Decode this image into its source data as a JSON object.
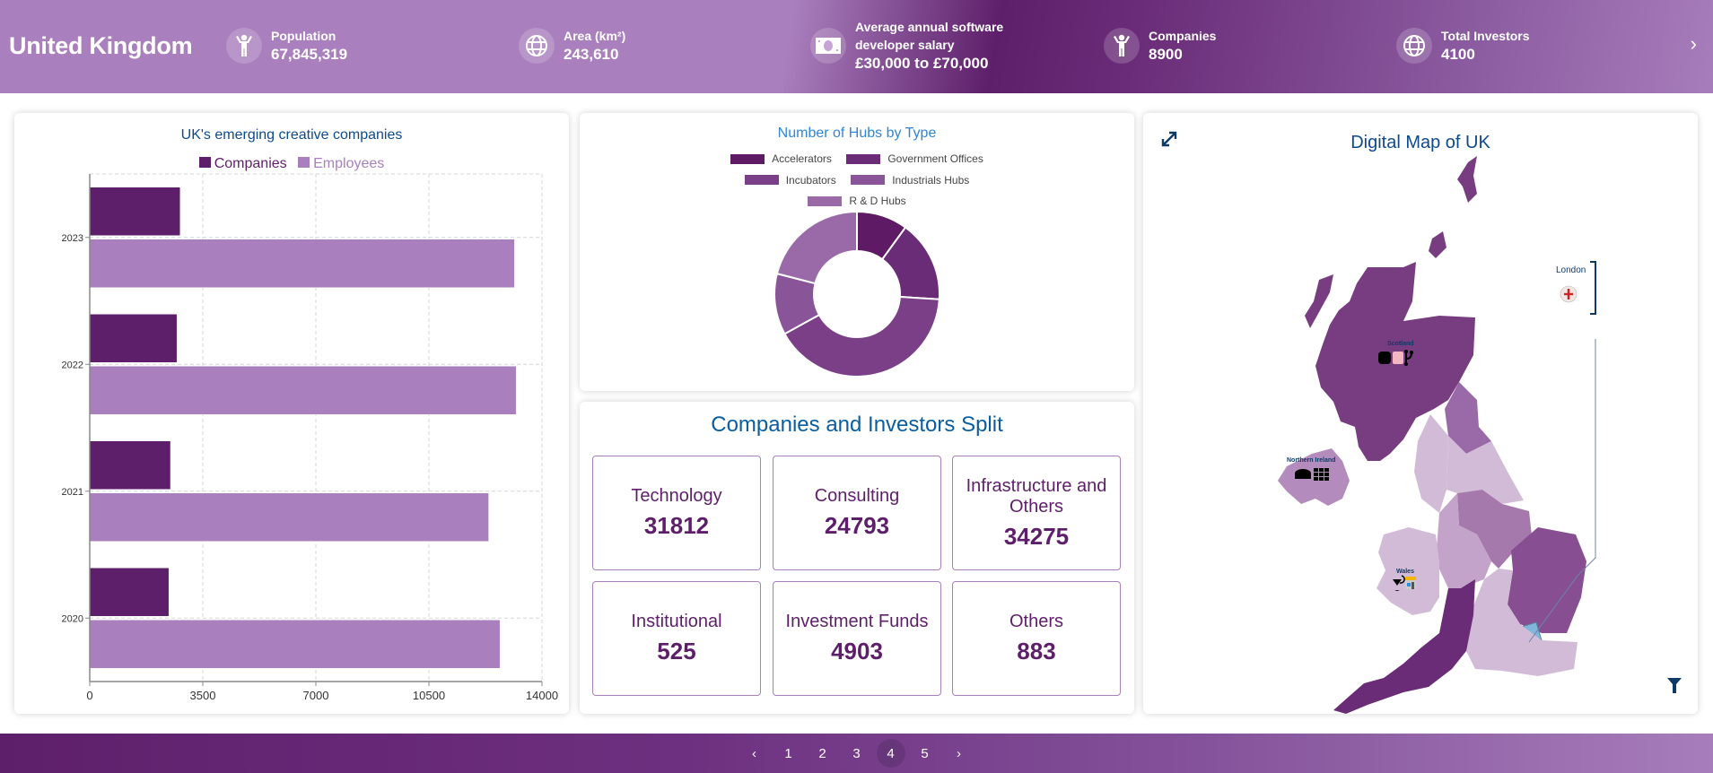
{
  "header": {
    "country": "United Kingdom",
    "stats": [
      {
        "icon": "person-icon",
        "label": "Population",
        "value": "67,845,319"
      },
      {
        "icon": "globe-icon",
        "label": "Area (km²)",
        "value": "243,610"
      },
      {
        "icon": "money-icon",
        "label": "Average annual software developer salary",
        "label_line1": "Average annual software",
        "label_line2": "developer salary",
        "value": "£30,000 to £70,000"
      },
      {
        "icon": "person-icon",
        "label": "Companies",
        "value": "8900"
      },
      {
        "icon": "globe-icon",
        "label": "Total Investors",
        "value": "4100"
      }
    ],
    "next_label": "›"
  },
  "colors": {
    "dark_purple": "#5e1f6a",
    "light_purple": "#a97fbd",
    "title_blue": "#0e4a8a",
    "hub_title_blue": "#2f86d6",
    "london_blue": "#7fb6d9"
  },
  "chart_data": [
    {
      "type": "bar",
      "orientation": "horizontal",
      "title": "UK's emerging creative companies",
      "categories": [
        "2023",
        "2022",
        "2021",
        "2020"
      ],
      "series": [
        {
          "name": "Companies",
          "color": "#5e1f6a",
          "values": [
            2800,
            2700,
            2500,
            2450
          ]
        },
        {
          "name": "Employees",
          "color": "#a97fbd",
          "values": [
            13150,
            13200,
            12350,
            12700
          ]
        }
      ],
      "xlim": [
        0,
        14000
      ],
      "xticks": [
        "0",
        "3500",
        "7000",
        "10500",
        "14000"
      ],
      "grid": true,
      "legend": "top-center"
    },
    {
      "type": "pie",
      "donut": true,
      "title": "Number of Hubs by Type",
      "labels": [
        "Accelerators",
        "Government Offices",
        "Incubators",
        "Industrials Hubs",
        "R & D Hubs"
      ],
      "values": [
        10,
        16,
        41,
        12,
        21
      ],
      "colors": [
        "#5e1a64",
        "#6b2c77",
        "#7a3f86",
        "#8a5598",
        "#9a6aa8"
      ],
      "legend": "top"
    }
  ],
  "split": {
    "title": "Companies and Investors Split",
    "tiles": [
      {
        "label": "Technology",
        "value": "31812"
      },
      {
        "label": "Consulting",
        "value": "24793"
      },
      {
        "label": "Infrastructure and Others",
        "value": "34275"
      },
      {
        "label": "Institutional",
        "value": "525"
      },
      {
        "label": "Investment Funds",
        "value": "4903"
      },
      {
        "label": "Others",
        "value": "883"
      }
    ]
  },
  "map": {
    "title": "Digital Map of UK",
    "labels": {
      "scotland": "Scotland",
      "northern_ireland": "Northern Ireland",
      "wales": "Wales",
      "london": "London"
    }
  },
  "pagination": {
    "pages": [
      "1",
      "2",
      "3",
      "4",
      "5"
    ],
    "current": "4",
    "prev": "‹",
    "next": "›"
  }
}
